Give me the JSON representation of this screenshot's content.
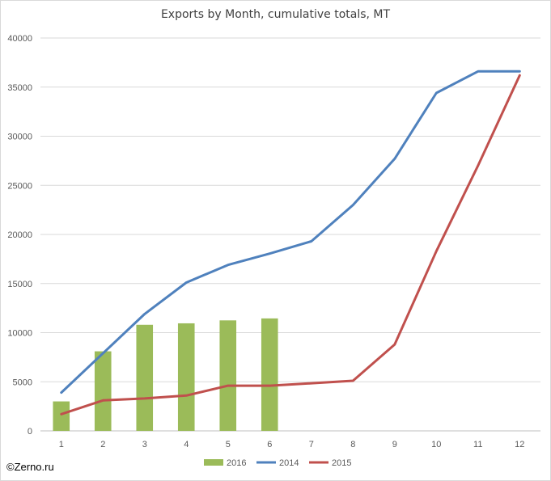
{
  "source_label": "©Zerno.ru",
  "chart_data": {
    "type": "bar+line",
    "title": "Exports by Month, cumulative totals, MT",
    "xlabel": "",
    "ylabel": "",
    "categories": [
      "1",
      "2",
      "3",
      "4",
      "5",
      "6",
      "7",
      "8",
      "9",
      "10",
      "11",
      "12"
    ],
    "ylim": [
      0,
      40000
    ],
    "yticks": [
      0,
      5000,
      10000,
      15000,
      20000,
      25000,
      30000,
      35000,
      40000
    ],
    "grid": true,
    "legend_position": "bottom",
    "series": [
      {
        "name": "2016",
        "kind": "bar",
        "color": "#9bbb59",
        "values": [
          3000,
          8100,
          10800,
          10950,
          11250,
          11450,
          null,
          null,
          null,
          null,
          null,
          null
        ]
      },
      {
        "name": "2014",
        "kind": "line",
        "color": "#4f81bd",
        "values": [
          3900,
          7900,
          11900,
          15100,
          16900,
          18050,
          19300,
          23000,
          27700,
          34400,
          36600,
          36600
        ]
      },
      {
        "name": "2015",
        "kind": "line",
        "color": "#c0504d",
        "values": [
          1700,
          3100,
          3300,
          3600,
          4600,
          4600,
          4850,
          5100,
          8800,
          18300,
          27000,
          36200
        ]
      }
    ]
  }
}
